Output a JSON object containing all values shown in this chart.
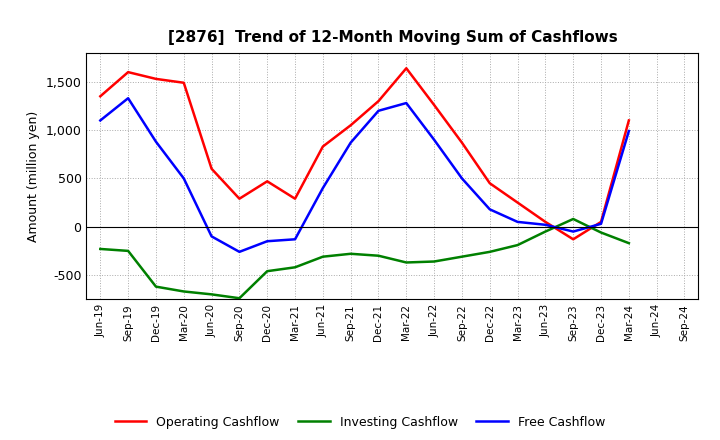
{
  "title": "[2876]  Trend of 12-Month Moving Sum of Cashflows",
  "ylabel": "Amount (million yen)",
  "x_labels": [
    "Jun-19",
    "Sep-19",
    "Dec-19",
    "Mar-20",
    "Jun-20",
    "Sep-20",
    "Dec-20",
    "Mar-21",
    "Jun-21",
    "Sep-21",
    "Dec-21",
    "Mar-22",
    "Jun-22",
    "Sep-22",
    "Dec-22",
    "Mar-23",
    "Jun-23",
    "Sep-23",
    "Dec-23",
    "Mar-24",
    "Jun-24",
    "Sep-24"
  ],
  "operating": [
    1350,
    1600,
    1530,
    1490,
    600,
    290,
    470,
    290,
    830,
    1050,
    1300,
    1640,
    1260,
    870,
    450,
    250,
    50,
    -130,
    50,
    1100,
    null,
    null
  ],
  "investing": [
    -230,
    -250,
    -620,
    -670,
    -700,
    -740,
    -460,
    -420,
    -310,
    -280,
    -300,
    -370,
    -360,
    -310,
    -260,
    -190,
    -50,
    80,
    -60,
    -170,
    null,
    null
  ],
  "free": [
    1100,
    1330,
    880,
    500,
    -100,
    -260,
    -150,
    -130,
    400,
    870,
    1200,
    1280,
    900,
    500,
    180,
    50,
    20,
    -50,
    30,
    990,
    null,
    null
  ],
  "operating_color": "#ff0000",
  "investing_color": "#008000",
  "free_color": "#0000ff",
  "ylim": [
    -750,
    1800
  ],
  "yticks": [
    -500,
    0,
    500,
    1000,
    1500
  ],
  "bg_color": "#ffffff",
  "plot_bg_color": "#ffffff",
  "grid_color": "#aaaaaa",
  "legend_labels": [
    "Operating Cashflow",
    "Investing Cashflow",
    "Free Cashflow"
  ]
}
